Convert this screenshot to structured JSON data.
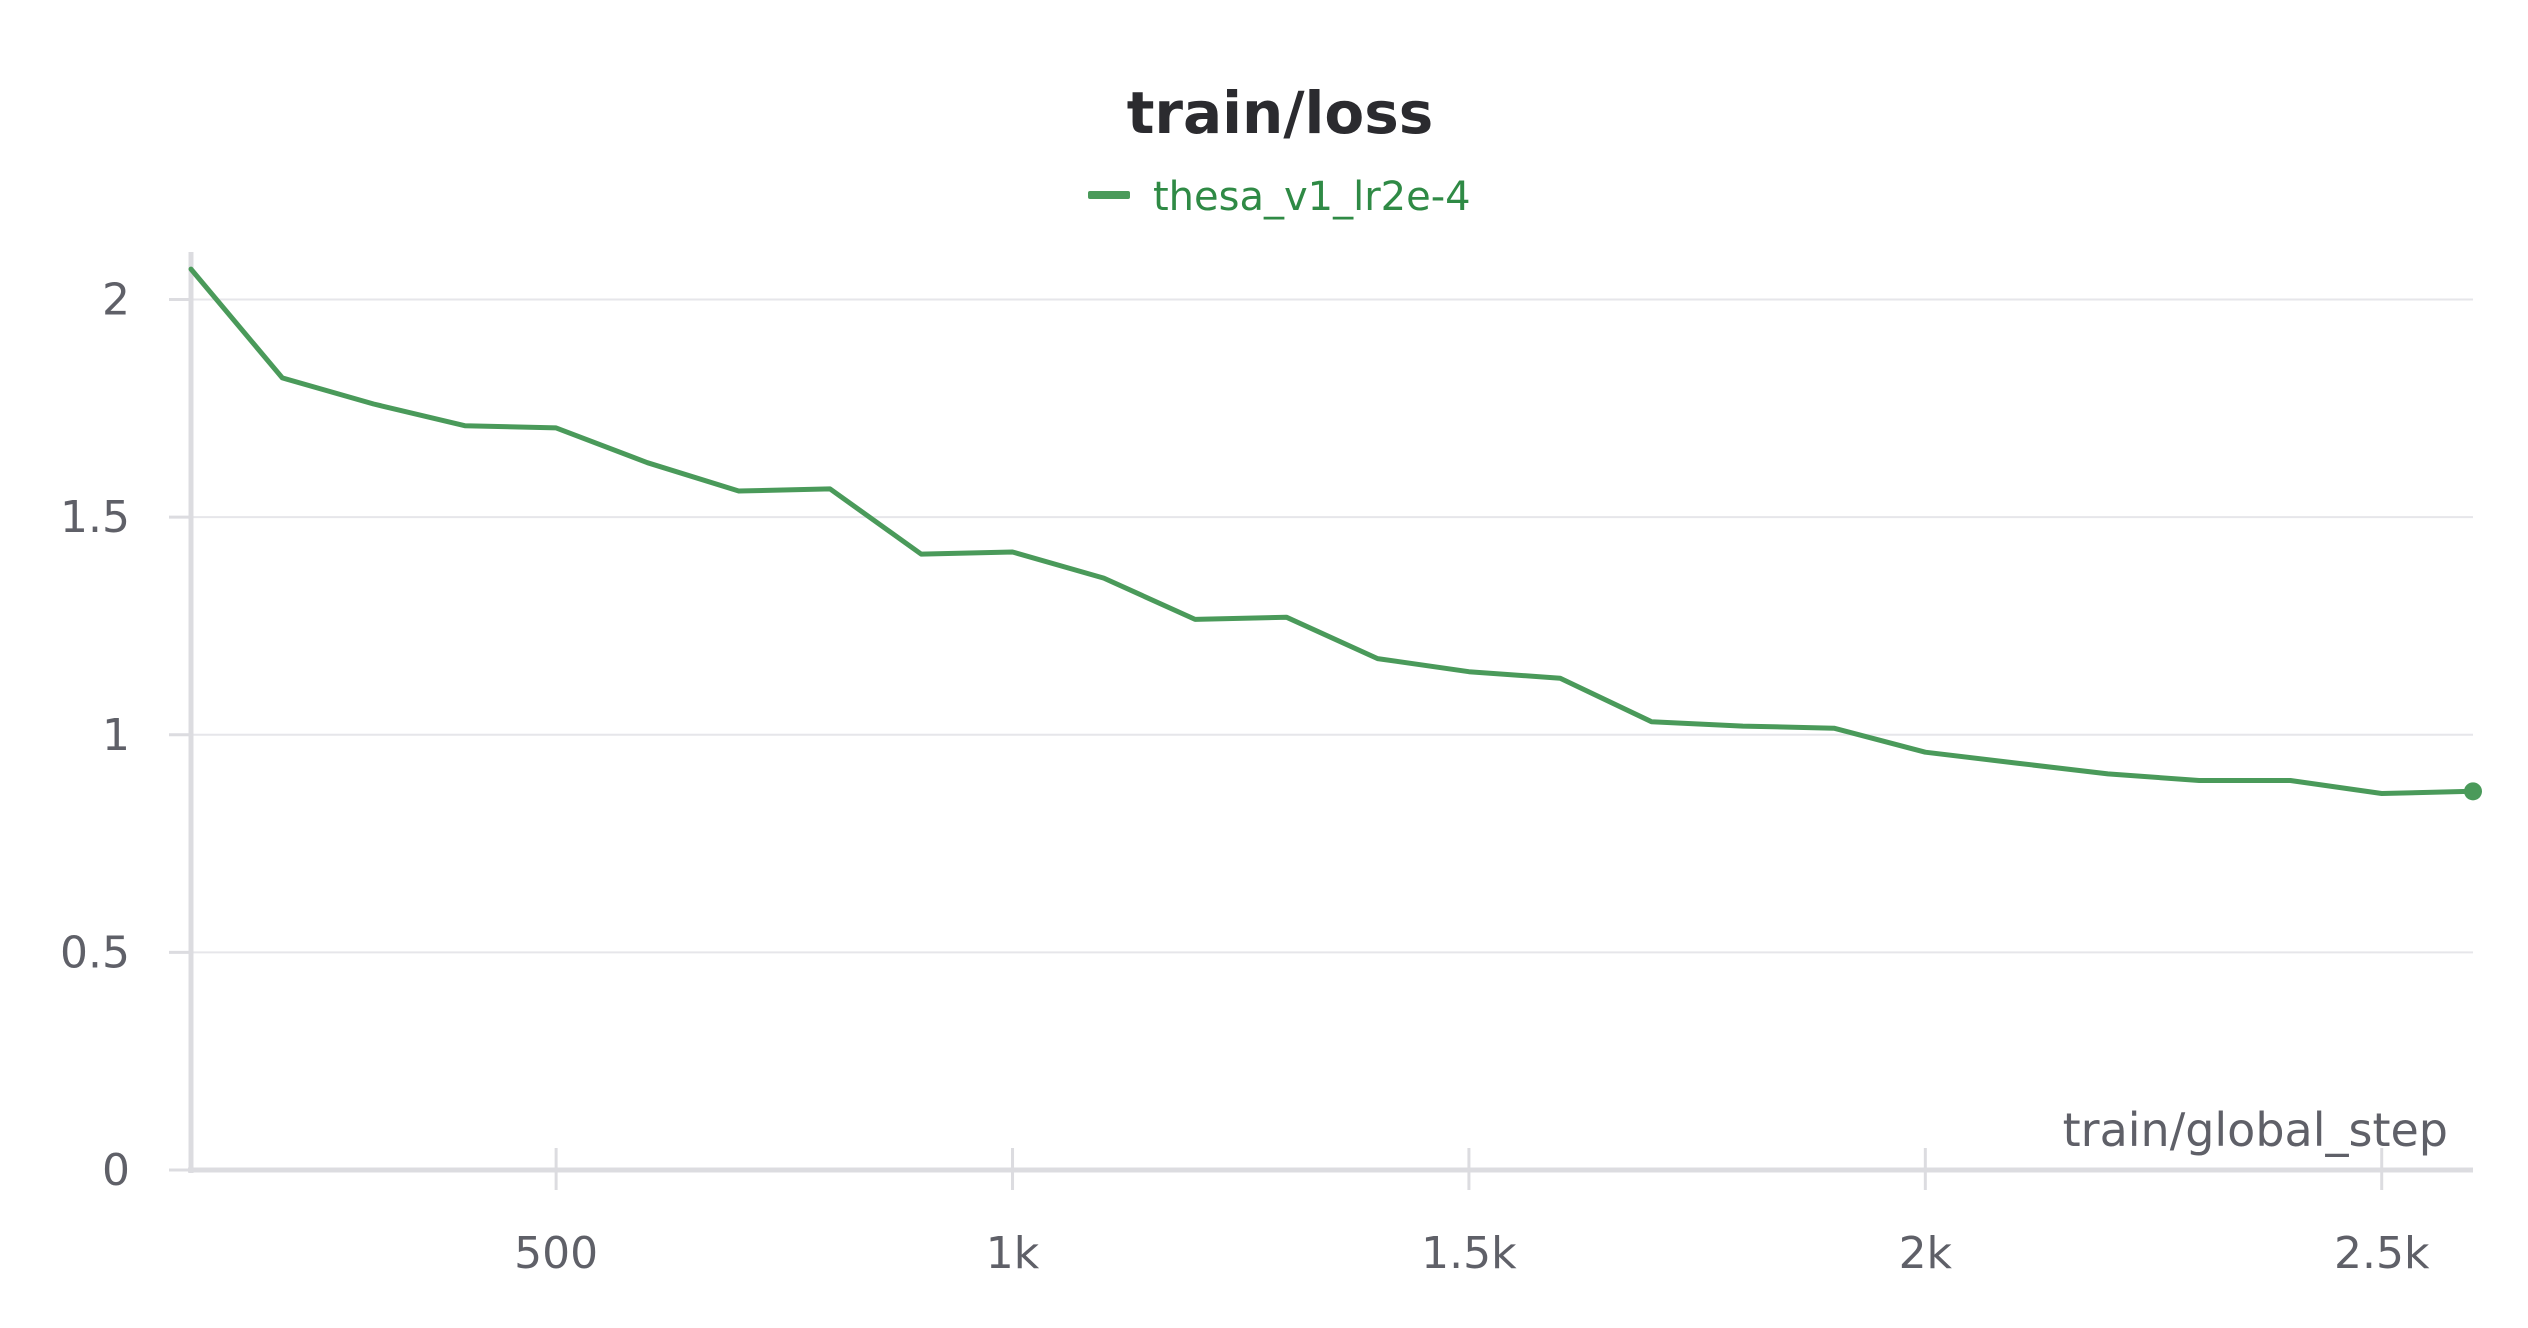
{
  "chart_data": {
    "type": "line",
    "title": "train/loss",
    "xlabel": "train/global_step",
    "ylabel": "",
    "xlim": [
      100,
      2600
    ],
    "ylim": [
      0,
      2.1
    ],
    "x_ticks": [
      {
        "value": 500,
        "label": "500"
      },
      {
        "value": 1000,
        "label": "1k"
      },
      {
        "value": 1500,
        "label": "1.5k"
      },
      {
        "value": 2000,
        "label": "2k"
      },
      {
        "value": 2500,
        "label": "2.5k"
      }
    ],
    "y_ticks": [
      {
        "value": 0,
        "label": "0"
      },
      {
        "value": 0.5,
        "label": "0.5"
      },
      {
        "value": 1,
        "label": "1"
      },
      {
        "value": 1.5,
        "label": "1.5"
      },
      {
        "value": 2,
        "label": "2"
      }
    ],
    "grid": "horizontal",
    "legend_position": "top-center",
    "series": [
      {
        "name": "thesa_v1_lr2e-4",
        "color": "#4a9a5a",
        "x": [
          100,
          200,
          300,
          400,
          500,
          600,
          700,
          800,
          900,
          1000,
          1100,
          1200,
          1300,
          1400,
          1500,
          1600,
          1700,
          1800,
          1900,
          2000,
          2100,
          2200,
          2300,
          2400,
          2500,
          2600
        ],
        "y": [
          2.07,
          1.82,
          1.76,
          1.71,
          1.705,
          1.625,
          1.56,
          1.565,
          1.415,
          1.42,
          1.36,
          1.265,
          1.27,
          1.175,
          1.145,
          1.13,
          1.03,
          1.02,
          1.015,
          0.96,
          0.935,
          0.91,
          0.895,
          0.895,
          0.865,
          0.87
        ]
      }
    ]
  }
}
